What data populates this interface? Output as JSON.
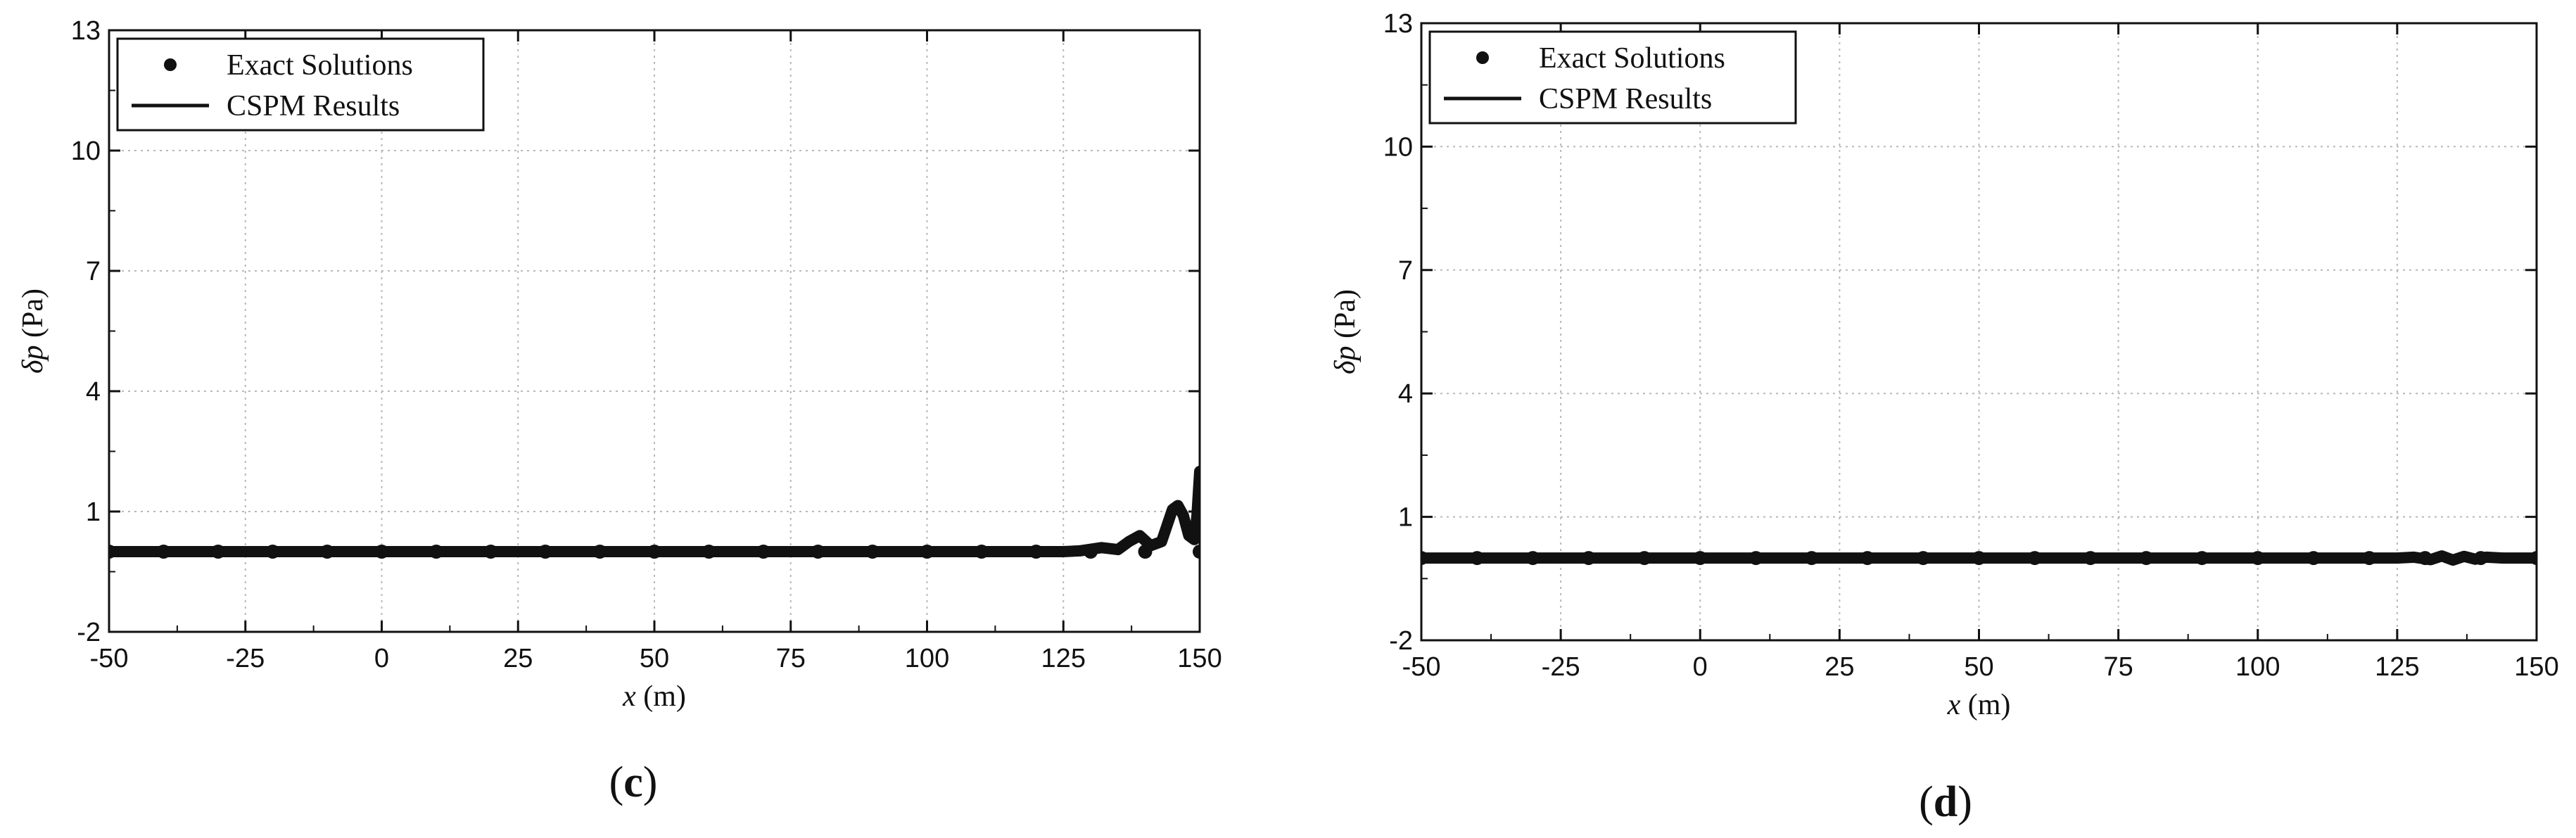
{
  "chart_data": [
    {
      "panel_label": "c",
      "type": "line",
      "xlabel_var": "x",
      "xlabel_unit": " (m)",
      "ylabel_var": "δp",
      "ylabel_unit": " (Pa)",
      "xlim": [
        -50,
        150
      ],
      "ylim": [
        -2,
        13
      ],
      "xticks": [
        -50,
        -25,
        0,
        25,
        50,
        75,
        100,
        125,
        150
      ],
      "yticks": [
        -2,
        1,
        4,
        7,
        10,
        13
      ],
      "grid": true,
      "legend_position": "top-left",
      "series": [
        {
          "name": "Exact Solutions",
          "style": "dots",
          "x": [
            -50,
            -40,
            -30,
            -20,
            -10,
            0,
            10,
            20,
            30,
            40,
            50,
            60,
            70,
            80,
            90,
            100,
            110,
            120,
            130,
            140,
            150
          ],
          "y": [
            0,
            0,
            0,
            0,
            0,
            0,
            0,
            0,
            0,
            0,
            0,
            0,
            0,
            0,
            0,
            0,
            0,
            0,
            0,
            0,
            0
          ]
        },
        {
          "name": "CSPM Results",
          "style": "line",
          "x": [
            -50,
            0,
            50,
            100,
            125,
            128,
            132,
            135,
            137,
            139,
            141,
            143,
            145,
            146,
            147,
            148,
            149,
            149.5,
            150
          ],
          "y": [
            0,
            0,
            0,
            0,
            0,
            0.02,
            0.1,
            0.05,
            0.25,
            0.4,
            0.15,
            0.25,
            1.05,
            1.15,
            0.9,
            0.4,
            0.3,
            0.9,
            2.0
          ]
        }
      ]
    },
    {
      "panel_label": "d",
      "type": "line",
      "xlabel_var": "x",
      "xlabel_unit": " (m)",
      "ylabel_var": "δp",
      "ylabel_unit": " (Pa)",
      "xlim": [
        -50,
        150
      ],
      "ylim": [
        -2,
        13
      ],
      "xticks": [
        -50,
        -25,
        0,
        25,
        50,
        75,
        100,
        125,
        150
      ],
      "yticks": [
        -2,
        1,
        4,
        7,
        10,
        13
      ],
      "grid": true,
      "legend_position": "top-left",
      "series": [
        {
          "name": "Exact Solutions",
          "style": "dots",
          "x": [
            -50,
            -40,
            -30,
            -20,
            -10,
            0,
            10,
            20,
            30,
            40,
            50,
            60,
            70,
            80,
            90,
            100,
            110,
            120,
            130,
            140,
            150
          ],
          "y": [
            0,
            0,
            0,
            0,
            0,
            0,
            0,
            0,
            0,
            0,
            0,
            0,
            0,
            0,
            0,
            0,
            0,
            0,
            0,
            0,
            0
          ]
        },
        {
          "name": "CSPM Results",
          "style": "line",
          "x": [
            -50,
            0,
            50,
            100,
            125,
            128,
            131,
            133,
            135,
            137,
            139,
            141,
            144,
            150
          ],
          "y": [
            0,
            0,
            0,
            0,
            0,
            0.02,
            -0.04,
            0.05,
            -0.05,
            0.04,
            -0.03,
            0.02,
            0,
            0
          ]
        }
      ]
    }
  ]
}
